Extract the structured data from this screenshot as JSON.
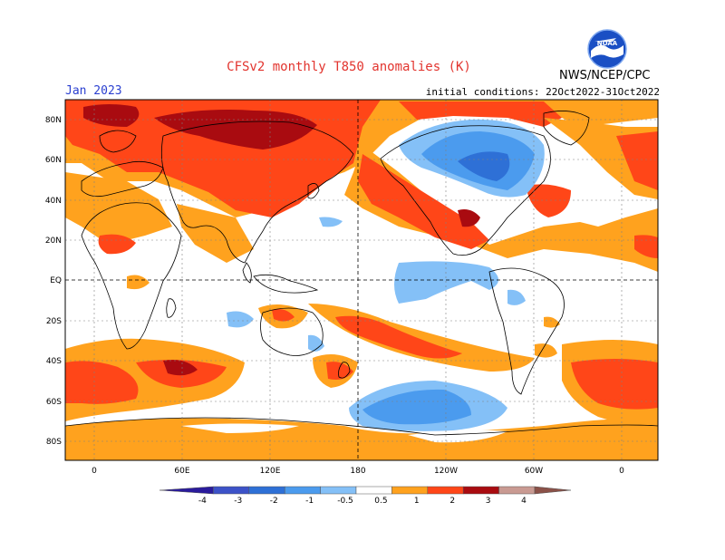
{
  "header": {
    "title": "CFSv2 monthly T850 anomalies (K)",
    "month": "Jan 2023",
    "initial_conditions": "initial conditions: 22Oct2022-31Oct2022",
    "agency": "NWS/NCEP/CPC",
    "logo_text": "NOAA"
  },
  "axes": {
    "lat_labels": [
      "80N",
      "60N",
      "40N",
      "20N",
      "EQ",
      "20S",
      "40S",
      "60S",
      "80S"
    ],
    "lon_labels": [
      "0",
      "60E",
      "120E",
      "180",
      "120W",
      "60W",
      "0"
    ]
  },
  "colorbar": {
    "labels": [
      "-4",
      "-3",
      "-2",
      "-1",
      "-0.5",
      "0.5",
      "1",
      "2",
      "3",
      "4"
    ],
    "colors": [
      "#2a1b9c",
      "#3c52c8",
      "#2e70d6",
      "#4b9bee",
      "#84c0f7",
      "#ffffff",
      "#ffa21e",
      "#ff4618",
      "#a90b10",
      "#c99a92",
      "#8b5148"
    ]
  },
  "legend_colors": {
    "warm_light": "#ffa21e",
    "warm_medium": "#ff4618",
    "warm_dark": "#a90b10",
    "cool_light": "#84c0f7",
    "cool_medium": "#4b9bee",
    "cool_dark": "#2e70d6"
  }
}
